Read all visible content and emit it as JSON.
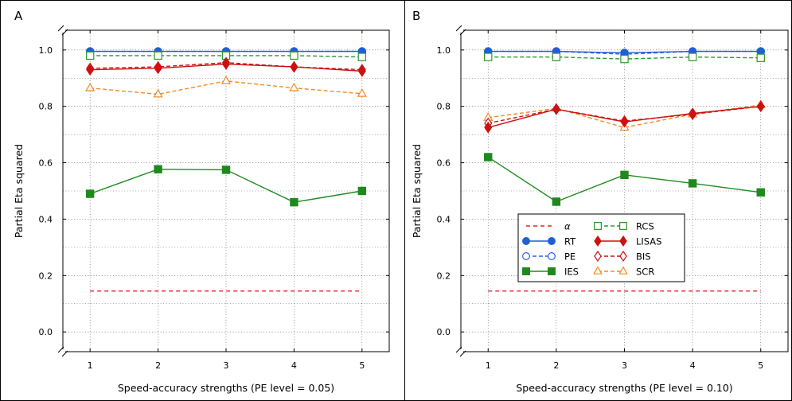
{
  "chart_data": [
    {
      "type": "line",
      "panel_label": "A",
      "xlabel": "Speed-accuracy strengths (PE level = 0.05)",
      "ylabel": "Partial Eta squared",
      "categories": [
        1,
        2,
        3,
        4,
        5
      ],
      "ylim": [
        -0.07,
        1.07
      ],
      "y_ticks": [
        "0.0",
        "0.2",
        "0.4",
        "0.6",
        "0.8",
        "1.0"
      ],
      "x_ticks": [
        "1",
        "2",
        "3",
        "4",
        "5"
      ],
      "grid": true,
      "series": [
        {
          "name": "α",
          "values": [
            0.145,
            0.145,
            0.145,
            0.145,
            0.145
          ]
        },
        {
          "name": "RT",
          "values": [
            0.995,
            0.995,
            0.995,
            0.995,
            0.995
          ]
        },
        {
          "name": "PE",
          "values": [
            0.995,
            0.995,
            0.995,
            0.995,
            0.995
          ]
        },
        {
          "name": "IES",
          "values": [
            0.49,
            0.577,
            0.575,
            0.46,
            0.5
          ]
        },
        {
          "name": "RCS",
          "values": [
            0.98,
            0.98,
            0.98,
            0.98,
            0.975
          ]
        },
        {
          "name": "LISAS",
          "values": [
            0.93,
            0.935,
            0.95,
            0.94,
            0.925
          ]
        },
        {
          "name": "BIS",
          "values": [
            0.935,
            0.94,
            0.955,
            0.94,
            0.93
          ]
        },
        {
          "name": "SCR",
          "values": [
            0.865,
            0.843,
            0.89,
            0.865,
            0.845
          ]
        }
      ]
    },
    {
      "type": "line",
      "panel_label": "B",
      "xlabel": "Speed-accuracy strengths (PE level = 0.10)",
      "ylabel": "Partial Eta squared",
      "categories": [
        1,
        2,
        3,
        4,
        5
      ],
      "ylim": [
        -0.07,
        1.07
      ],
      "y_ticks": [
        "0.0",
        "0.2",
        "0.4",
        "0.6",
        "0.8",
        "1.0"
      ],
      "x_ticks": [
        "1",
        "2",
        "3",
        "4",
        "5"
      ],
      "grid": true,
      "legend": {
        "placement": "center-right",
        "entries": [
          "α",
          "RCS",
          "RT",
          "LISAS",
          "PE",
          "BIS",
          "IES",
          "SCR"
        ]
      },
      "series": [
        {
          "name": "α",
          "values": [
            0.145,
            0.145,
            0.145,
            0.145,
            0.145
          ]
        },
        {
          "name": "RT",
          "values": [
            0.995,
            0.995,
            0.99,
            0.995,
            0.995
          ]
        },
        {
          "name": "PE",
          "values": [
            0.995,
            0.995,
            0.985,
            0.995,
            0.995
          ]
        },
        {
          "name": "IES",
          "values": [
            0.62,
            0.462,
            0.557,
            0.527,
            0.495
          ]
        },
        {
          "name": "RCS",
          "values": [
            0.975,
            0.975,
            0.968,
            0.975,
            0.972
          ]
        },
        {
          "name": "LISAS",
          "values": [
            0.725,
            0.79,
            0.745,
            0.775,
            0.8
          ]
        },
        {
          "name": "BIS",
          "values": [
            0.74,
            0.79,
            0.748,
            0.772,
            0.8
          ]
        },
        {
          "name": "SCR",
          "values": [
            0.76,
            0.793,
            0.725,
            0.772,
            0.805
          ]
        }
      ]
    }
  ],
  "series_styles": {
    "α": {
      "color": "#ee2222",
      "dash": "5,4",
      "marker": "none",
      "fill": "none"
    },
    "RT": {
      "color": "#1f5fd6",
      "dash": "",
      "marker": "circle",
      "fill": "#1f5fd6"
    },
    "PE": {
      "color": "#2a66e0",
      "dash": "5,3",
      "marker": "circle",
      "fill": "#ffffff"
    },
    "IES": {
      "color": "#1e8a1e",
      "dash": "",
      "marker": "square",
      "fill": "#1e8a1e"
    },
    "RCS": {
      "color": "#2a9a2a",
      "dash": "5,3",
      "marker": "square",
      "fill": "#ffffff"
    },
    "LISAS": {
      "color": "#cc1111",
      "dash": "",
      "marker": "diamond",
      "fill": "#cc1111"
    },
    "BIS": {
      "color": "#cc1111",
      "dash": "5,3",
      "marker": "diamond",
      "fill": "#ffffff"
    },
    "SCR": {
      "color": "#f08a24",
      "dash": "5,3",
      "marker": "triangle",
      "fill": "#ffffff"
    }
  }
}
